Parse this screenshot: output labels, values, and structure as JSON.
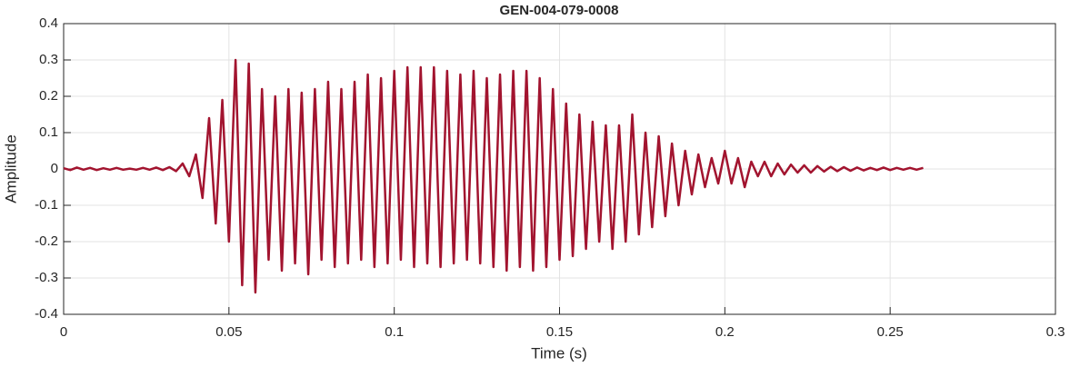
{
  "chart_data": {
    "type": "line",
    "title": "GEN-004-079-0008",
    "x_label": "Time (s)",
    "y_label": "Amplitude",
    "color": "#a2142f",
    "grid": true,
    "xlim": [
      0,
      0.3
    ],
    "xticks": [
      0,
      0.05,
      0.1,
      0.15,
      0.2,
      0.25,
      0.3
    ],
    "ylim": [
      -0.4,
      0.4
    ],
    "yticks": [
      -0.4,
      -0.3,
      -0.2,
      -0.1,
      0,
      0.1,
      0.2,
      0.3,
      0.4
    ],
    "x": [
      0,
      0.002,
      0.004,
      0.006,
      0.008,
      0.01,
      0.012,
      0.014,
      0.016,
      0.018,
      0.02,
      0.022,
      0.024,
      0.026,
      0.028,
      0.03,
      0.032,
      0.034,
      0.036,
      0.038,
      0.04,
      0.042,
      0.044,
      0.046,
      0.048,
      0.05,
      0.052,
      0.054,
      0.056,
      0.058,
      0.06,
      0.062,
      0.064,
      0.066,
      0.068,
      0.07,
      0.072,
      0.074,
      0.076,
      0.078,
      0.08,
      0.082,
      0.084,
      0.086,
      0.088,
      0.09,
      0.092,
      0.094,
      0.096,
      0.098,
      0.1,
      0.102,
      0.104,
      0.106,
      0.108,
      0.11,
      0.112,
      0.114,
      0.116,
      0.118,
      0.12,
      0.122,
      0.124,
      0.126,
      0.128,
      0.13,
      0.132,
      0.134,
      0.136,
      0.138,
      0.14,
      0.142,
      0.144,
      0.146,
      0.148,
      0.15,
      0.152,
      0.154,
      0.156,
      0.158,
      0.16,
      0.162,
      0.164,
      0.166,
      0.168,
      0.17,
      0.172,
      0.174,
      0.176,
      0.178,
      0.18,
      0.182,
      0.184,
      0.186,
      0.188,
      0.19,
      0.192,
      0.194,
      0.196,
      0.198,
      0.2,
      0.202,
      0.204,
      0.206,
      0.208,
      0.21,
      0.212,
      0.214,
      0.216,
      0.218,
      0.22,
      0.222,
      0.224,
      0.226,
      0.228,
      0.23,
      0.232,
      0.234,
      0.236,
      0.238,
      0.24,
      0.242,
      0.244,
      0.246,
      0.248,
      0.25,
      0.252,
      0.254,
      0.256,
      0.258,
      0.26
    ],
    "values": [
      0.002,
      -0.003,
      0.004,
      -0.002,
      0.003,
      -0.003,
      0.002,
      -0.002,
      0.003,
      -0.002,
      0.001,
      -0.002,
      0.003,
      -0.002,
      0.004,
      -0.003,
      0.005,
      -0.006,
      0.015,
      -0.02,
      0.04,
      -0.08,
      0.14,
      -0.15,
      0.19,
      -0.2,
      0.3,
      -0.32,
      0.29,
      -0.34,
      0.22,
      -0.25,
      0.2,
      -0.28,
      0.22,
      -0.26,
      0.21,
      -0.29,
      0.22,
      -0.25,
      0.24,
      -0.27,
      0.22,
      -0.26,
      0.24,
      -0.25,
      0.26,
      -0.27,
      0.25,
      -0.26,
      0.27,
      -0.25,
      0.28,
      -0.27,
      0.28,
      -0.26,
      0.28,
      -0.27,
      0.27,
      -0.26,
      0.26,
      -0.25,
      0.27,
      -0.26,
      0.25,
      -0.27,
      0.26,
      -0.28,
      0.27,
      -0.27,
      0.27,
      -0.28,
      0.25,
      -0.27,
      0.22,
      -0.25,
      0.18,
      -0.24,
      0.15,
      -0.22,
      0.13,
      -0.2,
      0.12,
      -0.22,
      0.12,
      -0.2,
      0.15,
      -0.18,
      0.1,
      -0.16,
      0.09,
      -0.13,
      0.07,
      -0.1,
      0.05,
      -0.07,
      0.04,
      -0.05,
      0.03,
      -0.04,
      0.05,
      -0.04,
      0.03,
      -0.05,
      0.02,
      -0.02,
      0.02,
      -0.02,
      0.015,
      -0.015,
      0.012,
      -0.01,
      0.01,
      -0.01,
      0.008,
      -0.007,
      0.006,
      -0.006,
      0.005,
      -0.005,
      0.004,
      -0.004,
      0.003,
      -0.003,
      0.004,
      -0.003,
      0.003,
      -0.002,
      0.003,
      -0.002,
      0.003
    ]
  }
}
